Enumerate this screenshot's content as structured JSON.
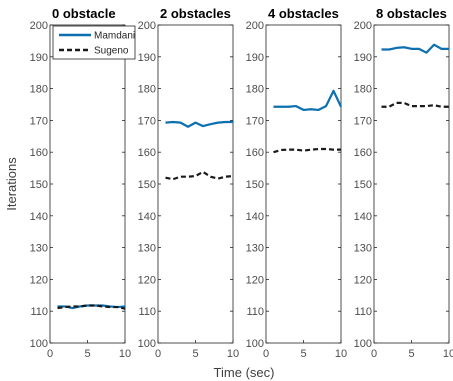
{
  "chart_data": {
    "type": "line",
    "ylabel": "Iterations",
    "xlabel": "Time (sec)",
    "xlim": [
      0,
      10
    ],
    "ylim": [
      100,
      200
    ],
    "xticks": [
      0,
      5,
      10
    ],
    "yticks": [
      100,
      110,
      120,
      130,
      140,
      150,
      160,
      170,
      180,
      190,
      200
    ],
    "grid": true,
    "legend": {
      "placement": "top-left of first panel",
      "entries": [
        {
          "name": "Mamdani",
          "color": "#0c6faf",
          "style": "solid"
        },
        {
          "name": "Sugeno",
          "color": "#1a1a1a",
          "style": "dashed"
        }
      ]
    },
    "panels": [
      {
        "title": "0 obstacle",
        "series": [
          {
            "name": "Mamdani",
            "x": [
              1,
              2,
              3,
              4,
              5,
              6,
              7,
              8,
              9,
              10
            ],
            "y": [
              111.5,
              111.5,
              111.0,
              111.5,
              111.8,
              111.8,
              111.8,
              111.5,
              111.3,
              111.5
            ]
          },
          {
            "name": "Sugeno",
            "x": [
              1,
              2,
              3,
              4,
              5,
              6,
              7,
              8,
              9,
              10
            ],
            "y": [
              111.0,
              111.3,
              111.5,
              111.5,
              111.8,
              111.8,
              111.5,
              111.3,
              111.3,
              110.8
            ]
          }
        ]
      },
      {
        "title": "2 obstacles",
        "series": [
          {
            "name": "Mamdani",
            "x": [
              1,
              2,
              3,
              4,
              5,
              6,
              7,
              8,
              9,
              10
            ],
            "y": [
              169.3,
              169.5,
              169.3,
              168.0,
              169.3,
              168.2,
              168.8,
              169.3,
              169.5,
              169.5
            ]
          },
          {
            "name": "Sugeno",
            "x": [
              1,
              2,
              3,
              4,
              5,
              6,
              7,
              8,
              9,
              10
            ],
            "y": [
              152.0,
              151.5,
              152.3,
              152.3,
              152.5,
              153.8,
              152.3,
              151.7,
              152.3,
              152.5
            ]
          }
        ]
      },
      {
        "title": "4 obstacles",
        "series": [
          {
            "name": "Mamdani",
            "x": [
              1,
              2,
              3,
              4,
              5,
              6,
              7,
              8,
              9,
              10
            ],
            "y": [
              174.3,
              174.3,
              174.3,
              174.5,
              173.3,
              173.5,
              173.3,
              174.5,
              179.3,
              174.3
            ]
          },
          {
            "name": "Sugeno",
            "x": [
              1,
              2,
              3,
              4,
              5,
              6,
              7,
              8,
              9,
              10
            ],
            "y": [
              160.0,
              160.7,
              160.8,
              160.8,
              160.5,
              160.8,
              161.0,
              161.0,
              160.8,
              160.8
            ]
          }
        ]
      },
      {
        "title": "8 obstacles",
        "series": [
          {
            "name": "Mamdani",
            "x": [
              1,
              2,
              3,
              4,
              5,
              6,
              7,
              8,
              9,
              10
            ],
            "y": [
              192.3,
              192.3,
              192.8,
              193.0,
              192.5,
              192.5,
              191.3,
              193.8,
              192.5,
              192.5
            ]
          },
          {
            "name": "Sugeno",
            "x": [
              1,
              2,
              3,
              4,
              5,
              6,
              7,
              8,
              9,
              10
            ],
            "y": [
              174.3,
              174.3,
              175.5,
              175.5,
              174.5,
              174.5,
              174.5,
              174.8,
              174.3,
              174.3
            ]
          }
        ]
      }
    ]
  }
}
